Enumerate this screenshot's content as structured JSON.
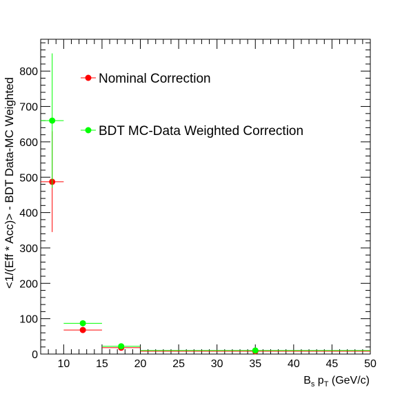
{
  "chart_data": {
    "type": "scatter",
    "title": "",
    "xlabel_main": "B",
    "xlabel_sub": "s",
    "xlabel_mid": " p",
    "xlabel_sub2": "T",
    "xlabel_tail": " (GeV/c)",
    "ylabel": "<1/(Eff * Acc)> - BDT Data-MC Weighted",
    "xlim": [
      7,
      50
    ],
    "ylim": [
      0,
      890
    ],
    "x_ticks": [
      10,
      15,
      20,
      25,
      30,
      35,
      40,
      45,
      50
    ],
    "y_ticks": [
      0,
      100,
      200,
      300,
      400,
      500,
      600,
      700,
      800
    ],
    "grid": false,
    "legend_placement": "top-left",
    "series": [
      {
        "name": "Nominal Correction",
        "color": "#ff0000",
        "points": [
          {
            "x": 8.5,
            "xlo": 7,
            "xhi": 10,
            "y": 487,
            "ylo": 345,
            "yhi": 630
          },
          {
            "x": 12.5,
            "xlo": 10,
            "xhi": 15,
            "y": 68,
            "ylo": 68,
            "yhi": 68
          },
          {
            "x": 17.5,
            "xlo": 15,
            "xhi": 20,
            "y": 18,
            "ylo": 14,
            "yhi": 22
          },
          {
            "x": 35,
            "xlo": 20,
            "xhi": 50,
            "y": 8,
            "ylo": 8,
            "yhi": 8
          }
        ]
      },
      {
        "name": "BDT MC-Data Weighted Correction",
        "color": "#00ff00",
        "points": [
          {
            "x": 8.5,
            "xlo": 7,
            "xhi": 10,
            "y": 660,
            "ylo": 470,
            "yhi": 850
          },
          {
            "x": 12.5,
            "xlo": 10,
            "xhi": 15,
            "y": 87,
            "ylo": 87,
            "yhi": 87
          },
          {
            "x": 17.5,
            "xlo": 15,
            "xhi": 20,
            "y": 22,
            "ylo": 18,
            "yhi": 26
          },
          {
            "x": 35,
            "xlo": 20,
            "xhi": 50,
            "y": 10,
            "ylo": 10,
            "yhi": 10
          }
        ]
      }
    ]
  }
}
